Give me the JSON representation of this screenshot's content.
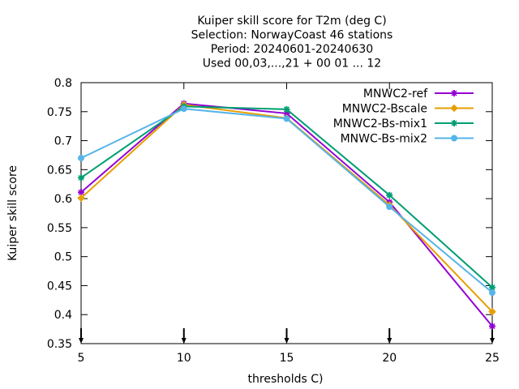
{
  "chart_data": {
    "type": "line",
    "title_lines": [
      "Kuiper skill score  for T2m (deg C)",
      "Selection: NorwayCoast     46 stations",
      "Period: 20240601-20240630",
      "Used 00,03,...,21 + 00 01 ... 12"
    ],
    "xlabel": "thresholds C)",
    "ylabel": "Kuiper skill score",
    "x": [
      5,
      10,
      15,
      20,
      25
    ],
    "xticks": [
      "5",
      "10",
      "15",
      "20",
      "25"
    ],
    "yticks": [
      "0.35",
      "0.4",
      "0.45",
      "0.5",
      "0.55",
      "0.6",
      "0.65",
      "0.7",
      "0.75",
      "0.8"
    ],
    "xlim": [
      5,
      25
    ],
    "ylim": [
      0.35,
      0.8
    ],
    "grid": false,
    "legend_position": "top-right",
    "series": [
      {
        "name": "MNWC2-ref",
        "color": "#9400d3",
        "values": [
          0.611,
          0.764,
          0.747,
          0.594,
          0.38
        ]
      },
      {
        "name": "MNWC2-Bscale",
        "color": "#e69f00",
        "values": [
          0.601,
          0.762,
          0.739,
          0.589,
          0.405
        ]
      },
      {
        "name": "MNWC2-Bs-mix1",
        "color": "#009e73",
        "values": [
          0.636,
          0.759,
          0.754,
          0.606,
          0.447
        ]
      },
      {
        "name": "MNWC-Bs-mix2",
        "color": "#56b4e9",
        "values": [
          0.67,
          0.755,
          0.738,
          0.586,
          0.438
        ]
      }
    ]
  }
}
